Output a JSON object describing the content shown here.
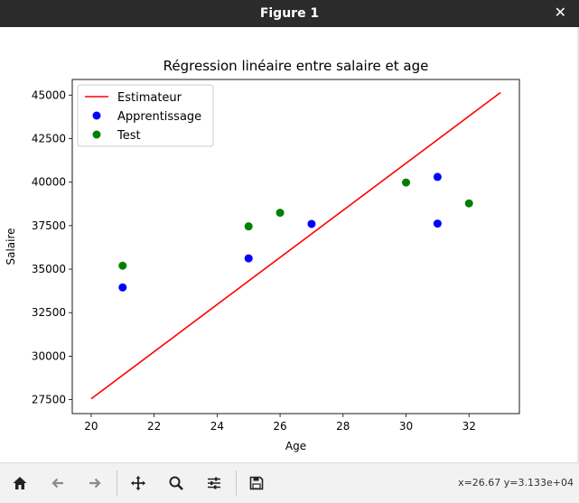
{
  "window": {
    "title": "Figure 1",
    "close_symbol": "✕"
  },
  "toolbar": {
    "icons": [
      "home-icon",
      "back-arrow-icon",
      "forward-arrow-icon",
      "pan-move-icon",
      "zoom-magnifier-icon",
      "configure-subplots-icon",
      "save-icon"
    ],
    "coords": "x=26.67 y=3.133e+04"
  },
  "colors": {
    "line": "#ff0000",
    "train": "#0000ff",
    "test": "#008000"
  },
  "chart_data": {
    "type": "scatter",
    "title": "Régression linéaire entre salaire et age",
    "xlabel": "Age",
    "ylabel": "Salaire",
    "xlim": [
      19.4,
      33.6
    ],
    "ylim": [
      26700,
      45900
    ],
    "xticks": [
      20,
      22,
      24,
      26,
      28,
      30,
      32
    ],
    "yticks": [
      27500,
      30000,
      32500,
      35000,
      37500,
      40000,
      42500,
      45000
    ],
    "legend_position": "upper-left",
    "series": [
      {
        "name": "Estimateur",
        "kind": "line",
        "color": "#ff0000",
        "x": [
          20,
          33
        ],
        "y": [
          27550,
          45150
        ]
      },
      {
        "name": "Apprentissage",
        "kind": "scatter",
        "color": "#0000ff",
        "x": [
          21,
          25,
          27,
          31,
          31
        ],
        "y": [
          33950,
          35620,
          37600,
          40300,
          37620
        ]
      },
      {
        "name": "Test",
        "kind": "scatter",
        "color": "#008000",
        "x": [
          21,
          25,
          26,
          30,
          32
        ],
        "y": [
          35200,
          37460,
          38240,
          39980,
          38780
        ]
      }
    ]
  }
}
